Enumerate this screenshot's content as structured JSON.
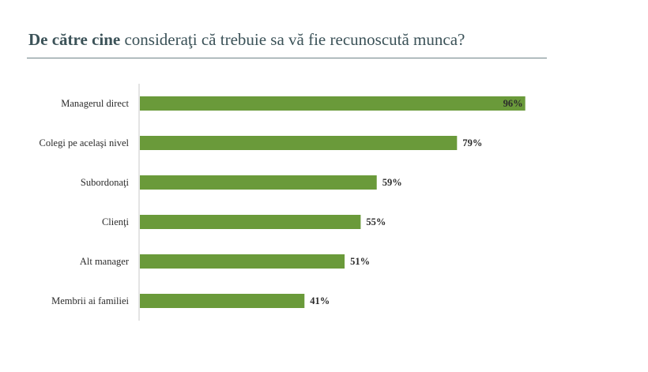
{
  "title": {
    "bold": "De către cine",
    "rest": " consideraţi că trebuie sa vă fie recunoscută munca?"
  },
  "chart_data": {
    "type": "bar",
    "orientation": "horizontal",
    "title": "De către cine consideraţi că trebuie sa vă fie recunoscută munca?",
    "categories": [
      "Managerul direct",
      "Colegi pe acelaşi nivel",
      "Subordonaţi",
      "Clienţi",
      "Alt manager",
      "Membrii ai familiei"
    ],
    "values": [
      96,
      79,
      59,
      55,
      51,
      41
    ],
    "value_labels": [
      "96%",
      "79%",
      "59%",
      "55%",
      "51%",
      "41%"
    ],
    "xlim": [
      0,
      100
    ],
    "bar_color": "#6a9a3a",
    "grid": false,
    "legend": "none"
  }
}
